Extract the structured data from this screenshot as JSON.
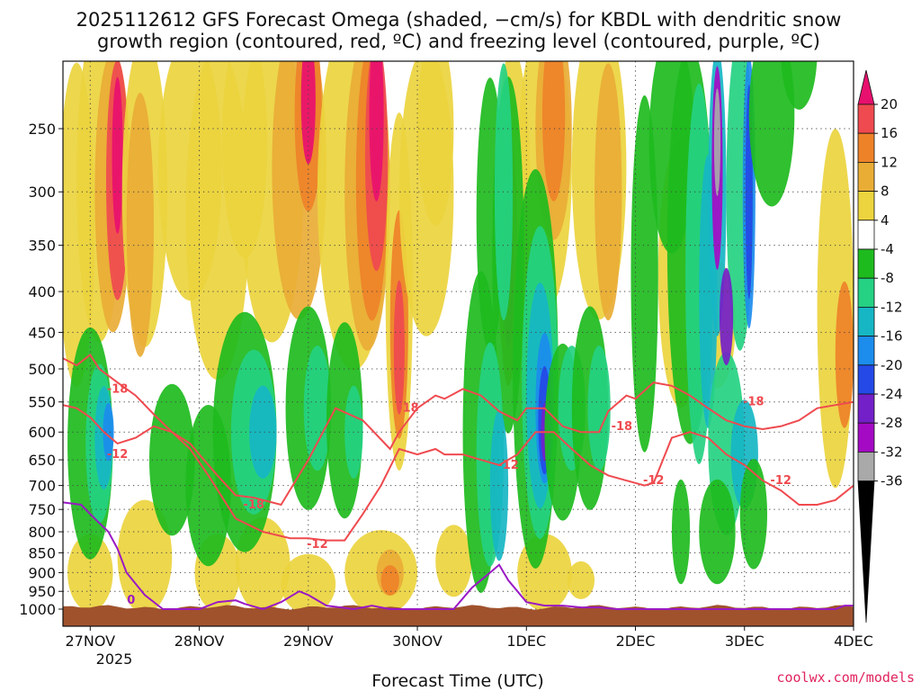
{
  "title_line1": "2025112612 GFS Forecast Omega (shaded, −cm/s) for KBDL with dendritic snow",
  "title_line2": "growth region (contoured, red, ºC) and freezing level (contoured, purple, ºC)",
  "credit": "coolwx.com/models",
  "chart_data": {
    "type": "heatmap",
    "title": "2025112612 GFS Forecast Omega (shaded, −cm/s) for KBDL with dendritic snow growth region (contoured, red, ºC) and freezing level (contoured, purple, ºC)",
    "xlabel": "Forecast Time (UTC)",
    "ylabel": "",
    "x_axis": {
      "ticks": [
        "27NOV",
        "28NOV",
        "29NOV",
        "30NOV",
        "1DEC",
        "2DEC",
        "3DEC",
        "4DEC"
      ],
      "tick_values_hours": [
        12,
        36,
        60,
        84,
        108,
        132,
        156,
        180
      ],
      "sublabel": "2025",
      "range_hours": [
        6,
        180
      ]
    },
    "y_axis": {
      "ticks": [
        250,
        300,
        350,
        400,
        450,
        500,
        550,
        600,
        650,
        700,
        750,
        800,
        850,
        900,
        950,
        1000
      ],
      "log_scale": true,
      "range": [
        200,
        1020
      ],
      "reversed": true
    },
    "grid": true,
    "colorbar": {
      "labels": [
        20,
        16,
        12,
        8,
        4,
        -4,
        -8,
        -12,
        -16,
        -20,
        -24,
        -28,
        -32,
        -36
      ],
      "colors": [
        "#e8106e",
        "#ef4a4f",
        "#ee8229",
        "#e9ad36",
        "#ecd43e",
        "#ffffff",
        "#1ebb1e",
        "#25d182",
        "#16b6c4",
        "#1c8ced",
        "#2449e6",
        "#7420c8",
        "#a40ac4",
        "#a9a9a9",
        "#000000"
      ]
    },
    "contours": [
      {
        "name": "-18",
        "color": "#ef4a4f",
        "x": [
          6,
          9,
          12,
          14,
          18,
          22,
          26,
          30,
          34,
          36,
          40,
          44,
          48,
          54,
          60,
          66,
          72,
          78,
          80,
          84,
          88,
          90,
          94,
          98,
          102,
          106,
          108,
          112,
          116,
          120,
          124,
          126,
          130,
          132,
          136,
          140,
          144,
          148,
          152,
          156,
          160,
          164,
          168,
          172,
          176,
          180
        ],
        "y": [
          485,
          495,
          480,
          500,
          520,
          540,
          570,
          600,
          620,
          640,
          680,
          720,
          725,
          740,
          650,
          560,
          580,
          630,
          600,
          560,
          540,
          545,
          530,
          540,
          565,
          580,
          560,
          560,
          590,
          600,
          600,
          565,
          540,
          545,
          520,
          525,
          540,
          560,
          580,
          590,
          595,
          590,
          580,
          560,
          555,
          550
        ]
      },
      {
        "name": "-12",
        "color": "#ef4a4f",
        "x": [
          6,
          9,
          12,
          15,
          18,
          22,
          26,
          30,
          34,
          38,
          44,
          50,
          56,
          60,
          64,
          68,
          72,
          76,
          80,
          84,
          88,
          90,
          94,
          98,
          102,
          106,
          110,
          114,
          118,
          122,
          126,
          130,
          134,
          136,
          140,
          144,
          148,
          152,
          156,
          160,
          164,
          168,
          172,
          176,
          180
        ],
        "y": [
          555,
          560,
          575,
          600,
          620,
          610,
          590,
          600,
          630,
          680,
          770,
          800,
          815,
          815,
          820,
          820,
          760,
          700,
          630,
          640,
          630,
          640,
          640,
          650,
          660,
          640,
          600,
          600,
          630,
          660,
          680,
          690,
          700,
          695,
          610,
          600,
          610,
          640,
          660,
          690,
          710,
          740,
          740,
          730,
          700
        ]
      },
      {
        "name": "0",
        "color": "#9a19c5",
        "x": [
          6,
          10,
          12,
          14,
          16,
          18,
          20,
          24,
          28,
          32,
          36,
          40,
          44,
          46,
          50,
          54,
          58,
          60,
          64,
          70,
          74,
          78,
          80,
          84,
          86,
          90,
          92,
          96,
          100,
          102,
          104,
          108,
          112,
          116,
          120,
          124,
          128,
          130,
          176,
          178,
          180
        ],
        "y": [
          735,
          740,
          760,
          780,
          800,
          840,
          900,
          960,
          1000,
          1000,
          1000,
          980,
          975,
          985,
          1000,
          980,
          950,
          960,
          990,
          1000,
          990,
          1000,
          1000,
          1000,
          1000,
          1000,
          1000,
          940,
          900,
          880,
          920,
          980,
          990,
          990,
          995,
          995,
          1000,
          1000,
          1000,
          990,
          990
        ]
      }
    ]
  }
}
